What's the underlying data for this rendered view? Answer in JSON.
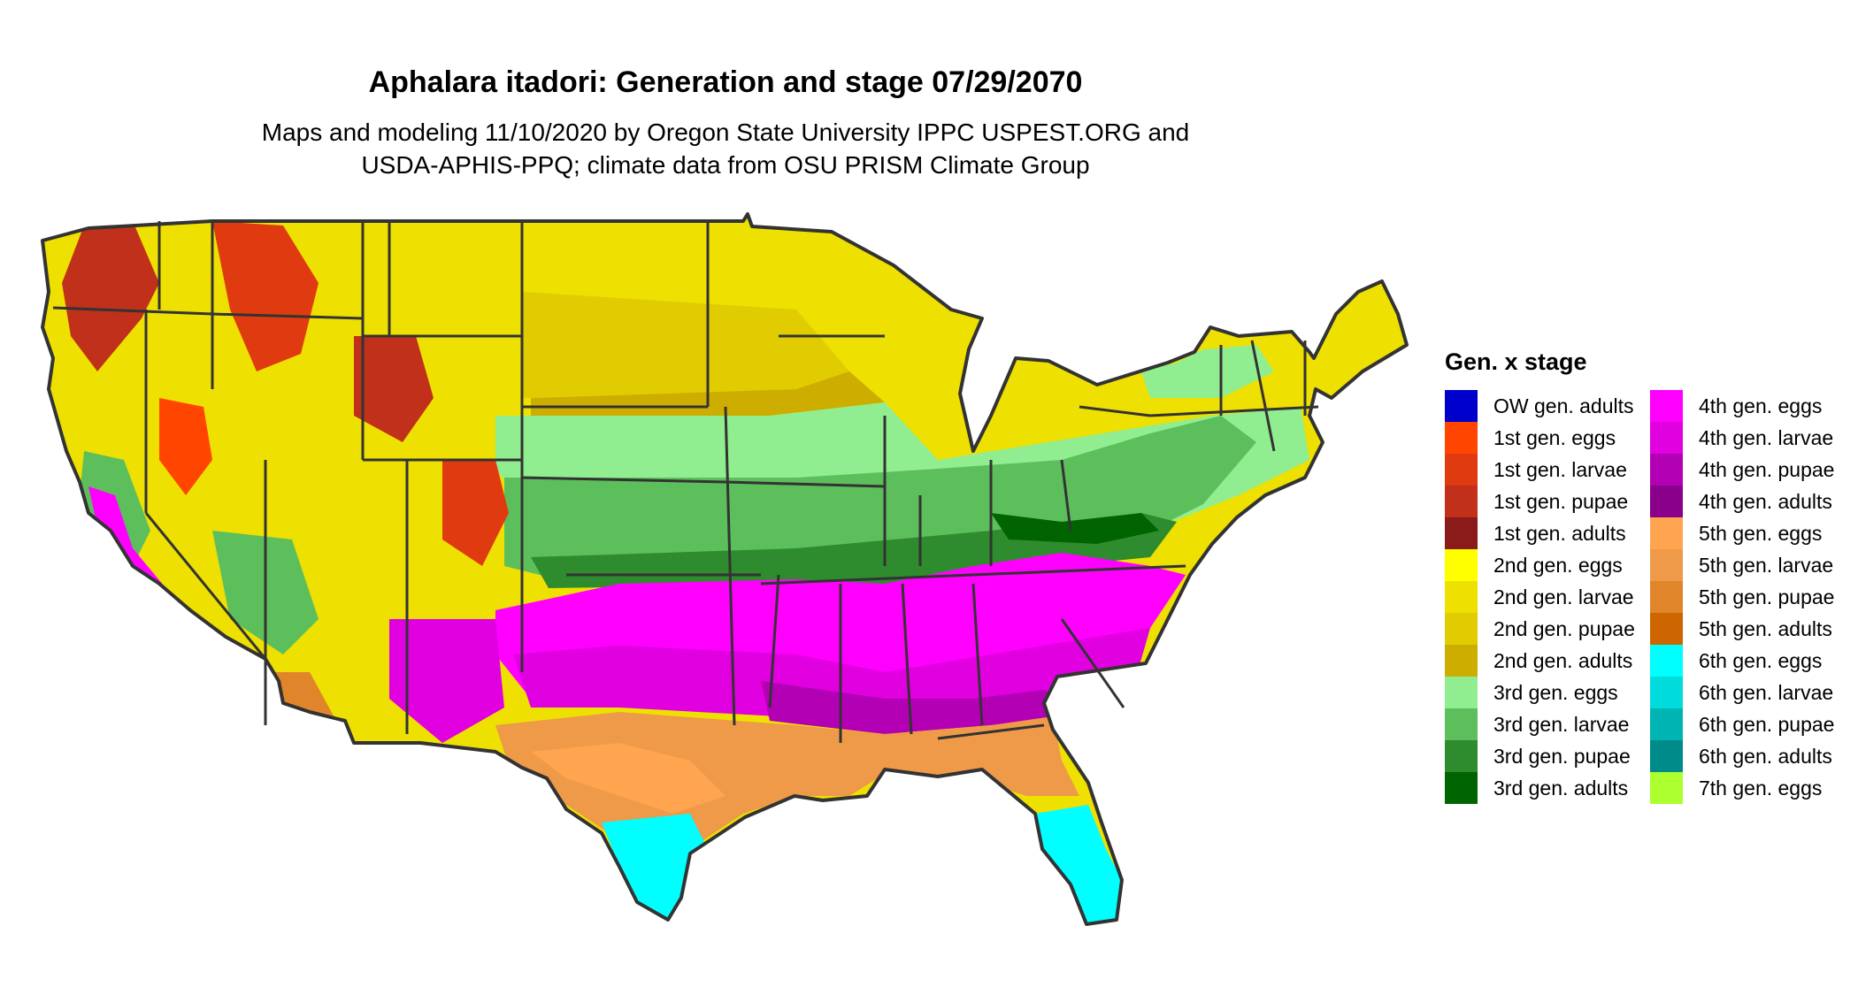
{
  "title": "Aphalara itadori: Generation and stage 07/29/2070",
  "subtitle_lines": [
    "Maps and modeling 11/10/2020 by Oregon State University IPPC USPEST.ORG and",
    "USDA-APHIS-PPQ; climate data from OSU PRISM Climate Group"
  ],
  "legend": {
    "title": "Gen. x stage",
    "items": [
      {
        "label": "OW gen. adults",
        "color": "#0000cd"
      },
      {
        "label": "1st gen. eggs",
        "color": "#ff4500"
      },
      {
        "label": "1st gen. larvae",
        "color": "#e03a10"
      },
      {
        "label": "1st gen. pupae",
        "color": "#c0301a"
      },
      {
        "label": "1st gen. adults",
        "color": "#8b1a1a"
      },
      {
        "label": "2nd gen. eggs",
        "color": "#ffff00"
      },
      {
        "label": "2nd gen. larvae",
        "color": "#eee000"
      },
      {
        "label": "2nd gen. pupae",
        "color": "#e0cc00"
      },
      {
        "label": "2nd gen. adults",
        "color": "#cdad00"
      },
      {
        "label": "3rd gen. eggs",
        "color": "#90ee90"
      },
      {
        "label": "3rd gen. larvae",
        "color": "#5cbf5c"
      },
      {
        "label": "3rd gen. pupae",
        "color": "#2e8b2e"
      },
      {
        "label": "3rd gen. adults",
        "color": "#006400"
      },
      {
        "label": "4th gen. eggs",
        "color": "#ff00ff"
      },
      {
        "label": "4th gen. larvae",
        "color": "#e000e0"
      },
      {
        "label": "4th gen. pupae",
        "color": "#b400b4"
      },
      {
        "label": "4th gen. adults",
        "color": "#8b008b"
      },
      {
        "label": "5th gen. eggs",
        "color": "#ffa54f"
      },
      {
        "label": "5th gen. larvae",
        "color": "#ee9a49"
      },
      {
        "label": "5th gen. pupae",
        "color": "#e0852a"
      },
      {
        "label": "5th gen. adults",
        "color": "#cd6600"
      },
      {
        "label": "6th gen. eggs",
        "color": "#00ffff"
      },
      {
        "label": "6th gen. larvae",
        "color": "#00dcdc"
      },
      {
        "label": "6th gen. pupae",
        "color": "#00b4b4"
      },
      {
        "label": "6th gen. adults",
        "color": "#008b8b"
      },
      {
        "label": "7th gen. eggs",
        "color": "#adff2f"
      }
    ]
  }
}
